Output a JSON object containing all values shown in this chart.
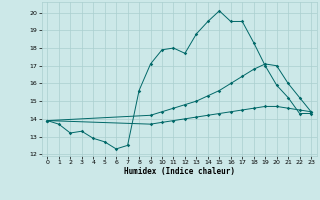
{
  "background_color": "#cce8e8",
  "grid_color": "#aacfcf",
  "line_color": "#006868",
  "line1_x": [
    0,
    1,
    2,
    3,
    4,
    5,
    6,
    7,
    8,
    9,
    10,
    11,
    12,
    13,
    14,
    15,
    16,
    17,
    18,
    19,
    20,
    21,
    22,
    23
  ],
  "line1_y": [
    13.9,
    13.7,
    13.2,
    13.3,
    12.9,
    12.7,
    12.3,
    12.5,
    15.6,
    17.1,
    17.9,
    18.0,
    17.7,
    18.8,
    19.5,
    20.1,
    19.5,
    19.5,
    18.3,
    17.0,
    15.9,
    15.2,
    14.3,
    14.3
  ],
  "line2_x": [
    0,
    9,
    10,
    11,
    12,
    13,
    14,
    15,
    16,
    17,
    18,
    19,
    20,
    21,
    22,
    23
  ],
  "line2_y": [
    13.9,
    14.2,
    14.4,
    14.6,
    14.8,
    15.0,
    15.3,
    15.6,
    16.0,
    16.4,
    16.8,
    17.1,
    17.0,
    16.0,
    15.2,
    14.4
  ],
  "line3_x": [
    0,
    9,
    10,
    11,
    12,
    13,
    14,
    15,
    16,
    17,
    18,
    19,
    20,
    21,
    22,
    23
  ],
  "line3_y": [
    13.9,
    13.7,
    13.8,
    13.9,
    14.0,
    14.1,
    14.2,
    14.3,
    14.4,
    14.5,
    14.6,
    14.7,
    14.7,
    14.6,
    14.5,
    14.4
  ],
  "xlim": [
    -0.5,
    23.5
  ],
  "ylim": [
    11.9,
    20.6
  ],
  "yticks": [
    12,
    13,
    14,
    15,
    16,
    17,
    18,
    19,
    20
  ],
  "xticks": [
    0,
    1,
    2,
    3,
    4,
    5,
    6,
    7,
    8,
    9,
    10,
    11,
    12,
    13,
    14,
    15,
    16,
    17,
    18,
    19,
    20,
    21,
    22,
    23
  ],
  "xlabel": "Humidex (Indice chaleur)",
  "marker": "D",
  "marker_size": 1.8,
  "linewidth": 0.7
}
